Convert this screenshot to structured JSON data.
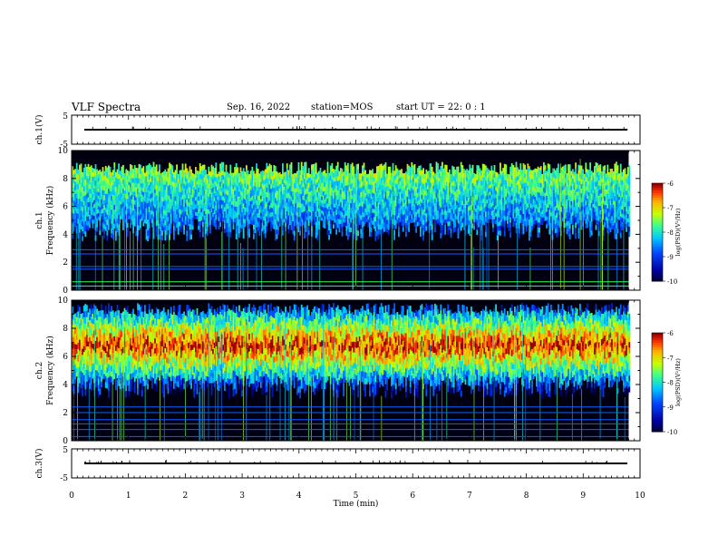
{
  "header": {
    "title": "VLF Spectra",
    "date": "Sep. 16, 2022",
    "station": "station=MOS",
    "start": "start  UT =  22: 0  : 1"
  },
  "chart_data": [
    {
      "type": "line",
      "panel": "ch1-voltage",
      "ylabel": "ch.1(V)",
      "ylim": [
        -5,
        5
      ],
      "yticks": [
        "5",
        "-5"
      ],
      "xlim": [
        0,
        10
      ],
      "level": 0
    },
    {
      "type": "heatmap",
      "panel": "ch1-spectrogram",
      "ylabel_line1": "ch.1",
      "ylabel_line2": "Frequency (kHz)",
      "ylim": [
        0,
        10
      ],
      "yticks": [
        "0",
        "2",
        "4",
        "6",
        "8",
        "10"
      ],
      "xlim": [
        0,
        9.8
      ],
      "colorbar": {
        "label": "log(PSD)(V²/Hz)",
        "range": [
          -10,
          -6
        ],
        "ticks": [
          "-6",
          "-7",
          "-8",
          "-9",
          "-10"
        ]
      },
      "band_kHz": [
        4.0,
        9.2
      ],
      "lines_kHz": [
        0.3,
        0.6,
        1.5,
        1.7,
        2.6,
        2.9
      ]
    },
    {
      "type": "heatmap",
      "panel": "ch2-spectrogram",
      "ylabel_line1": "ch.2",
      "ylabel_line2": "Frequency (kHz)",
      "ylim": [
        0,
        10
      ],
      "yticks": [
        "0",
        "2",
        "4",
        "6",
        "8",
        "10"
      ],
      "xlim": [
        0,
        9.8
      ],
      "colorbar": {
        "label": "log(PSD)(V²/Hz)",
        "range": [
          -10,
          -6
        ],
        "ticks": [
          "-6",
          "-7",
          "-8",
          "-9",
          "-10"
        ]
      },
      "band_kHz": [
        3.5,
        9.8
      ],
      "peak_kHz": 6.8,
      "lines_kHz": [
        0.3,
        0.8,
        1.2,
        1.5,
        2.0,
        2.4
      ]
    },
    {
      "type": "line",
      "panel": "ch3-voltage",
      "ylabel": "ch.3(V)",
      "ylim": [
        -5,
        5
      ],
      "yticks": [
        "5",
        "-5"
      ],
      "xlim": [
        0,
        10
      ],
      "level": 0,
      "xlabel": "Time (min)",
      "xticks": [
        "0",
        "1",
        "2",
        "3",
        "4",
        "5",
        "6",
        "7",
        "8",
        "9",
        "10"
      ]
    }
  ]
}
